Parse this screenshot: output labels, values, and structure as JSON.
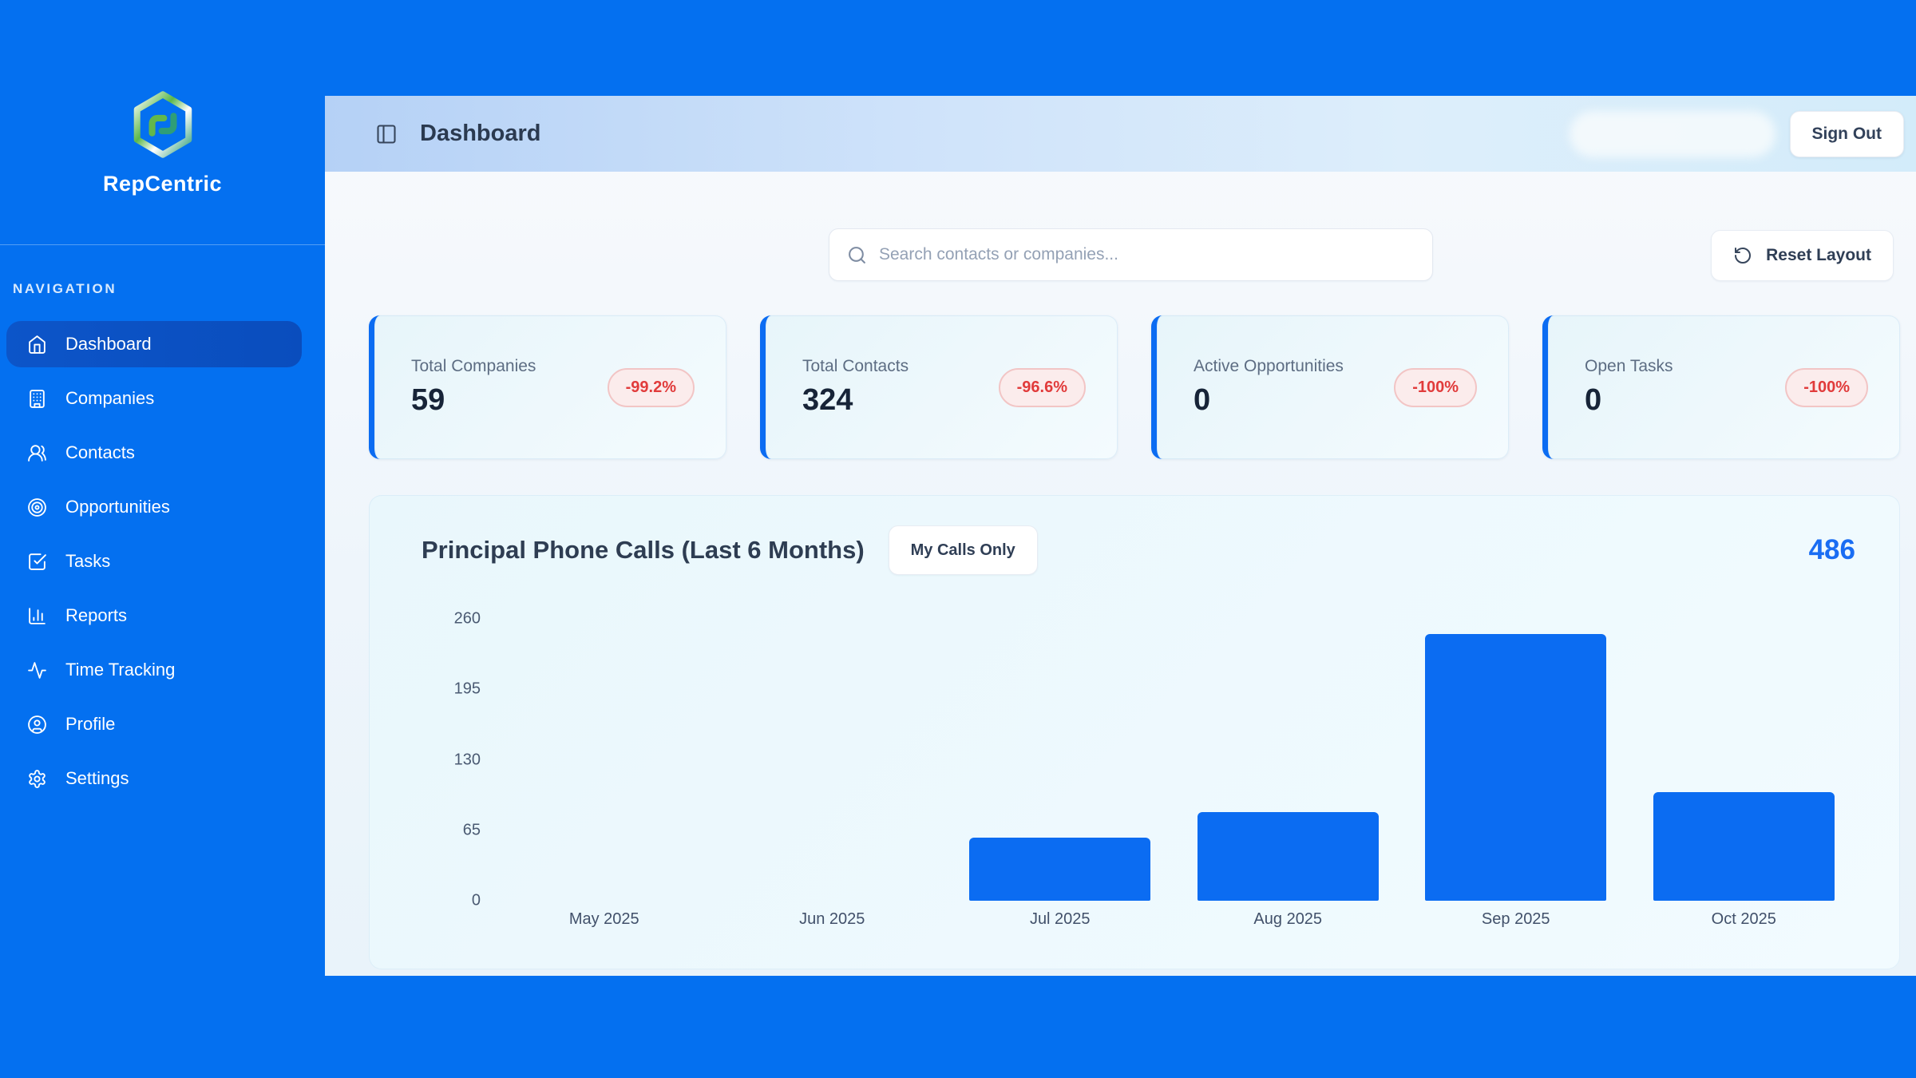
{
  "app": {
    "name": "RepCentric"
  },
  "sidebar": {
    "section_label": "NAVIGATION",
    "items": [
      {
        "label": "Dashboard",
        "icon": "home",
        "active": true
      },
      {
        "label": "Companies",
        "icon": "building",
        "active": false
      },
      {
        "label": "Contacts",
        "icon": "users",
        "active": false
      },
      {
        "label": "Opportunities",
        "icon": "target",
        "active": false
      },
      {
        "label": "Tasks",
        "icon": "check-square",
        "active": false
      },
      {
        "label": "Reports",
        "icon": "bar-chart",
        "active": false
      },
      {
        "label": "Time Tracking",
        "icon": "activity",
        "active": false
      },
      {
        "label": "Profile",
        "icon": "user-circle",
        "active": false
      },
      {
        "label": "Settings",
        "icon": "settings",
        "active": false
      }
    ]
  },
  "header": {
    "title": "Dashboard",
    "sign_out_label": "Sign Out"
  },
  "toolbar": {
    "search_placeholder": "Search contacts or companies...",
    "reset_layout_label": "Reset Layout"
  },
  "stats": {
    "cards": [
      {
        "label": "Total Companies",
        "value": "59",
        "change": "-99.2%"
      },
      {
        "label": "Total Contacts",
        "value": "324",
        "change": "-96.6%"
      },
      {
        "label": "Active Opportunities",
        "value": "0",
        "change": "-100%"
      },
      {
        "label": "Open Tasks",
        "value": "0",
        "change": "-100%"
      }
    ]
  },
  "chart_card": {
    "title": "Principal Phone Calls (Last 6 Months)",
    "filter_button_label": "My Calls Only",
    "total": "486"
  },
  "chart_data": {
    "type": "bar",
    "title": "Principal Phone Calls (Last 6 Months)",
    "categories": [
      "May 2025",
      "Jun 2025",
      "Jul 2025",
      "Aug 2025",
      "Sep 2025",
      "Oct 2025"
    ],
    "values": [
      0,
      0,
      58,
      82,
      246,
      100
    ],
    "total": 486,
    "yticks": [
      0,
      65,
      130,
      195,
      260
    ],
    "ylim": [
      0,
      260
    ],
    "grid": false,
    "legend": "none",
    "xlabel": "",
    "ylabel": "",
    "bar_color": "#0b6cf2"
  },
  "colors": {
    "brand_blue": "#0470f0",
    "active_nav_blue": "#0b53c4",
    "bar_blue": "#0b6cf2",
    "accent_border_blue": "#0b6cf2",
    "total_blue": "#1a6df3",
    "badge_red_text": "#e13b3b",
    "badge_red_bg": "#fbecec",
    "badge_red_border": "#f2c5c5",
    "header_gradient_left": "#b5d1f6",
    "header_gradient_right": "#d3ecfa",
    "card_bg": "#e9f7fc",
    "dark_text": "#172438",
    "muted_text": "#5d6d83"
  }
}
